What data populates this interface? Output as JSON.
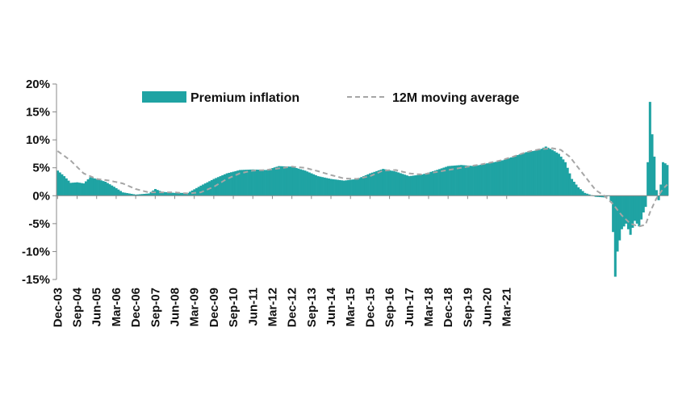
{
  "chart_data": {
    "type": "bar",
    "title": "",
    "xlabel": "",
    "ylabel": "",
    "ylim": [
      -0.15,
      0.2
    ],
    "y_ticks": [
      "20%",
      "15%",
      "10%",
      "5%",
      "0%",
      "-5%",
      "-10%",
      "-15%"
    ],
    "y_tick_values": [
      0.2,
      0.15,
      0.1,
      0.05,
      0.0,
      -0.05,
      -0.1,
      -0.15
    ],
    "x_ticks": [
      "Dec-03",
      "Sep-04",
      "Jun-05",
      "Mar-06",
      "Dec-06",
      "Sep-07",
      "Jun-08",
      "Mar-09",
      "Dec-09",
      "Sep-10",
      "Jun-11",
      "Mar-12",
      "Dec-12",
      "Sep-13",
      "Jun-14",
      "Mar-15",
      "Dec-15",
      "Sep-16",
      "Jun-17",
      "Mar-18",
      "Dec-18",
      "Sep-19",
      "Jun-20",
      "Mar-21"
    ],
    "x_start": "Dec-03",
    "grid": false,
    "legend_position": "top",
    "colors": {
      "bars": "#1fa3a3",
      "moving_average": "#a6a6a6",
      "axis": "#888888"
    },
    "series": [
      {
        "name": "Premium inflation",
        "type": "bar",
        "anchors": [
          [
            0,
            0.045
          ],
          [
            3,
            0.035
          ],
          [
            6,
            0.023
          ],
          [
            9,
            0.024
          ],
          [
            12,
            0.022
          ],
          [
            15,
            0.033
          ],
          [
            18,
            0.03
          ],
          [
            22,
            0.025
          ],
          [
            26,
            0.016
          ],
          [
            30,
            0.006
          ],
          [
            36,
            0.002
          ],
          [
            42,
            0.004
          ],
          [
            45,
            0.012
          ],
          [
            48,
            0.007
          ],
          [
            54,
            0.005
          ],
          [
            60,
            0.005
          ],
          [
            66,
            0.018
          ],
          [
            72,
            0.03
          ],
          [
            78,
            0.04
          ],
          [
            84,
            0.046
          ],
          [
            90,
            0.047
          ],
          [
            96,
            0.046
          ],
          [
            102,
            0.053
          ],
          [
            108,
            0.052
          ],
          [
            114,
            0.045
          ],
          [
            120,
            0.035
          ],
          [
            126,
            0.03
          ],
          [
            132,
            0.027
          ],
          [
            138,
            0.03
          ],
          [
            144,
            0.04
          ],
          [
            150,
            0.048
          ],
          [
            156,
            0.043
          ],
          [
            162,
            0.035
          ],
          [
            168,
            0.038
          ],
          [
            174,
            0.045
          ],
          [
            180,
            0.053
          ],
          [
            186,
            0.055
          ],
          [
            192,
            0.053
          ],
          [
            198,
            0.058
          ],
          [
            204,
            0.062
          ],
          [
            210,
            0.07
          ],
          [
            216,
            0.078
          ],
          [
            222,
            0.082
          ],
          [
            225,
            0.088
          ],
          [
            228,
            0.082
          ],
          [
            231,
            0.075
          ],
          [
            234,
            0.06
          ],
          [
            237,
            0.03
          ],
          [
            240,
            0.015
          ],
          [
            243,
            0.005
          ],
          [
            246,
            0.001
          ],
          [
            248,
            -0.002
          ],
          [
            252,
            -0.003
          ],
          [
            254,
            0.0
          ],
          [
            255,
            -0.01
          ],
          [
            256,
            -0.065
          ],
          [
            257,
            -0.145
          ],
          [
            258,
            -0.1
          ],
          [
            260,
            -0.06
          ],
          [
            262,
            -0.05
          ],
          [
            264,
            -0.07
          ],
          [
            266,
            -0.045
          ],
          [
            268,
            -0.055
          ],
          [
            270,
            -0.03
          ],
          [
            271,
            -0.02
          ],
          [
            272,
            0.06
          ],
          [
            273,
            0.168
          ],
          [
            274,
            0.11
          ],
          [
            275,
            0.07
          ],
          [
            276,
            0.01
          ],
          [
            277,
            -0.008
          ],
          [
            278,
            0.02
          ],
          [
            279,
            0.06
          ],
          [
            280,
            0.058
          ],
          [
            281,
            0.055
          ]
        ]
      },
      {
        "name": "12M moving average",
        "type": "line",
        "style": "dashed",
        "anchors": [
          [
            0,
            0.08
          ],
          [
            6,
            0.063
          ],
          [
            12,
            0.04
          ],
          [
            18,
            0.03
          ],
          [
            24,
            0.027
          ],
          [
            30,
            0.022
          ],
          [
            36,
            0.012
          ],
          [
            42,
            0.006
          ],
          [
            48,
            0.006
          ],
          [
            54,
            0.006
          ],
          [
            60,
            0.004
          ],
          [
            66,
            0.006
          ],
          [
            72,
            0.016
          ],
          [
            78,
            0.03
          ],
          [
            84,
            0.04
          ],
          [
            90,
            0.045
          ],
          [
            96,
            0.046
          ],
          [
            102,
            0.049
          ],
          [
            108,
            0.052
          ],
          [
            114,
            0.05
          ],
          [
            120,
            0.044
          ],
          [
            126,
            0.037
          ],
          [
            132,
            0.031
          ],
          [
            138,
            0.03
          ],
          [
            144,
            0.035
          ],
          [
            150,
            0.045
          ],
          [
            156,
            0.046
          ],
          [
            162,
            0.04
          ],
          [
            168,
            0.038
          ],
          [
            174,
            0.042
          ],
          [
            180,
            0.046
          ],
          [
            186,
            0.05
          ],
          [
            192,
            0.054
          ],
          [
            198,
            0.058
          ],
          [
            204,
            0.063
          ],
          [
            210,
            0.07
          ],
          [
            216,
            0.078
          ],
          [
            222,
            0.083
          ],
          [
            228,
            0.085
          ],
          [
            232,
            0.082
          ],
          [
            236,
            0.07
          ],
          [
            240,
            0.05
          ],
          [
            244,
            0.03
          ],
          [
            248,
            0.01
          ],
          [
            252,
            0.0
          ],
          [
            256,
            -0.015
          ],
          [
            260,
            -0.035
          ],
          [
            264,
            -0.05
          ],
          [
            268,
            -0.055
          ],
          [
            271,
            -0.052
          ],
          [
            273,
            -0.03
          ],
          [
            276,
            -0.005
          ],
          [
            279,
            0.012
          ],
          [
            281,
            0.02
          ]
        ]
      }
    ]
  }
}
